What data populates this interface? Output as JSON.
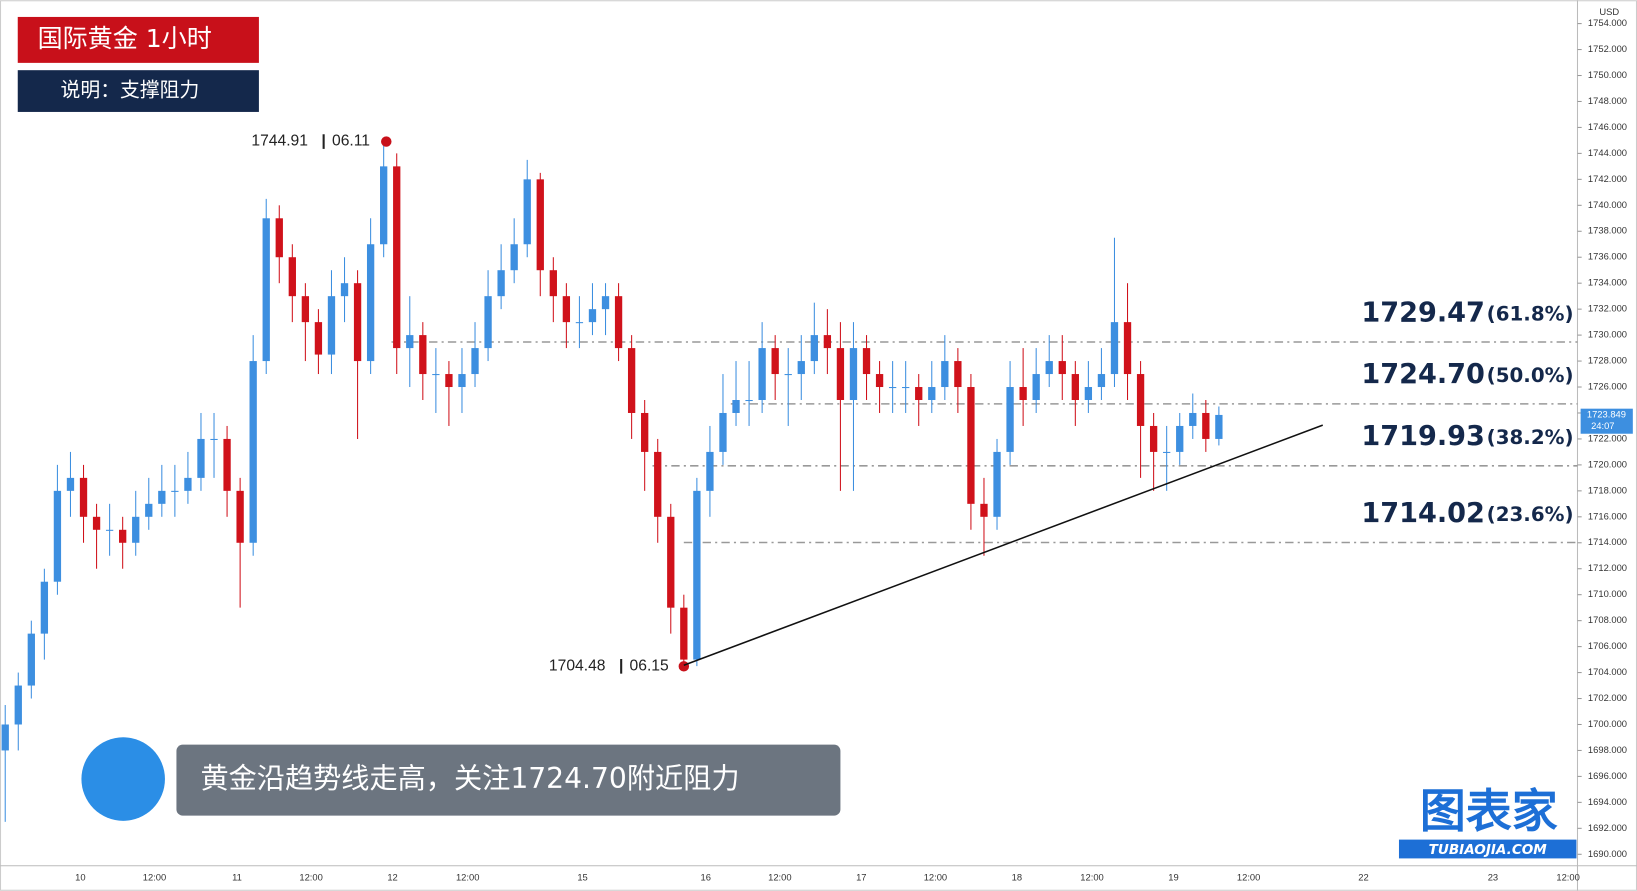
{
  "chart_data": {
    "type": "candlestick",
    "title": "国际黄金  1小时",
    "subtitle": "说明：支撑阻力",
    "caption": "黄金沿趋势线走高，关注1724.70附近阻力",
    "currency": "USD",
    "last_price": {
      "value": 1723.849,
      "label": "1723.849"
    },
    "countdown": "24:07",
    "logo": "图表家",
    "logo_url": "TUBIAOJIA.COM",
    "up_color": "#3d8fe0",
    "down_color": "#d0121b",
    "open": [
      1698,
      1700,
      1703,
      1707,
      1711,
      1718,
      1719,
      1716,
      1715,
      1715,
      1714,
      1716,
      1717,
      1718,
      1718,
      1719,
      1722,
      1722,
      1718,
      1714,
      1728,
      1739,
      1736,
      1733,
      1731,
      1728.5,
      1733,
      1734,
      1728,
      1737,
      1743,
      1729,
      1730,
      1727,
      1727,
      1726,
      1727,
      1729,
      1733,
      1735,
      1737,
      1742,
      1735,
      1733,
      1731,
      1731,
      1732,
      1733,
      1729,
      1724,
      1721,
      1716,
      1709,
      1705,
      1718,
      1721,
      1724,
      1725,
      1725,
      1729,
      1727,
      1727,
      1728,
      1730,
      1729,
      1725,
      1729,
      1727,
      1726,
      1726,
      1726,
      1725,
      1726,
      1728,
      1726,
      1717,
      1716,
      1721,
      1726,
      1725,
      1727,
      1728,
      1727,
      1725,
      1726,
      1727,
      1731,
      1727,
      1723,
      1721,
      1721,
      1723,
      1724,
      1722
    ],
    "high": [
      1701.5,
      1704,
      1708,
      1712,
      1720,
      1721,
      1720,
      1717,
      1717,
      1716,
      1718,
      1719,
      1720,
      1720,
      1721,
      1724,
      1724,
      1723,
      1719,
      1730,
      1740.5,
      1740,
      1737,
      1734,
      1732,
      1735,
      1736,
      1735,
      1739,
      1744.91,
      1744,
      1733,
      1731,
      1729,
      1728,
      1729,
      1731,
      1735,
      1737,
      1739,
      1743.5,
      1742.5,
      1736,
      1734,
      1733,
      1734,
      1734,
      1734,
      1730,
      1725,
      1722,
      1717,
      1710,
      1719,
      1723,
      1727,
      1728,
      1728,
      1731,
      1730,
      1729,
      1730,
      1732.5,
      1732,
      1731,
      1731,
      1730,
      1728,
      1728,
      1728,
      1727,
      1728,
      1730,
      1729,
      1727,
      1719,
      1722,
      1728,
      1729,
      1729,
      1730,
      1730,
      1728,
      1728,
      1729,
      1737.5,
      1734,
      1728,
      1724,
      1723,
      1724,
      1725.5,
      1725,
      1724.5
    ],
    "low": [
      1692.5,
      1698,
      1702,
      1705,
      1710,
      1716,
      1714,
      1712,
      1713,
      1712,
      1713,
      1715,
      1716,
      1716,
      1717,
      1718,
      1719,
      1716,
      1709,
      1713,
      1727,
      1734,
      1731,
      1728,
      1727,
      1727,
      1731,
      1722,
      1727,
      1736,
      1727,
      1726,
      1725,
      1724,
      1723,
      1724,
      1726,
      1728,
      1732,
      1734,
      1736,
      1733,
      1731,
      1729,
      1729,
      1730,
      1730,
      1728,
      1722,
      1718,
      1714,
      1707,
      1704.48,
      1704.5,
      1716,
      1720,
      1723,
      1723,
      1724,
      1725,
      1723,
      1725,
      1727,
      1727,
      1718,
      1718,
      1725,
      1724,
      1724,
      1724,
      1723,
      1724,
      1725,
      1724,
      1715,
      1713,
      1715,
      1720,
      1723,
      1724,
      1726,
      1725,
      1723,
      1724,
      1725,
      1726,
      1725,
      1719,
      1718,
      1718,
      1720,
      1722,
      1721,
      1721.5
    ],
    "close": [
      1700,
      1703,
      1707,
      1711,
      1718,
      1719,
      1716,
      1715,
      1715,
      1714,
      1716,
      1717,
      1718,
      1718,
      1719,
      1722,
      1722,
      1718,
      1714,
      1728,
      1739,
      1736,
      1733,
      1731,
      1728.5,
      1733,
      1734,
      1728,
      1737,
      1743,
      1729,
      1730,
      1727,
      1727,
      1726,
      1727,
      1729,
      1733,
      1735,
      1737,
      1742,
      1735,
      1733,
      1731,
      1731,
      1732,
      1733,
      1729,
      1724,
      1721,
      1716,
      1709,
      1705,
      1718,
      1721,
      1724,
      1725,
      1725,
      1729,
      1727,
      1727,
      1728,
      1730,
      1729,
      1725,
      1729,
      1727,
      1726,
      1726,
      1726,
      1725,
      1726,
      1728,
      1726,
      1717,
      1716,
      1721,
      1726,
      1725,
      1727,
      1728,
      1727,
      1725,
      1726,
      1727,
      1731,
      1727,
      1723,
      1721,
      1721,
      1723,
      1724,
      1722,
      1723.849
    ],
    "ylim": [
      1689.2,
      1755.8
    ],
    "yticks": [
      {
        "value": 1690,
        "label": "1690.000"
      },
      {
        "value": 1692,
        "label": "1692.000"
      },
      {
        "value": 1694,
        "label": "1694.000"
      },
      {
        "value": 1696,
        "label": "1696.000"
      },
      {
        "value": 1698,
        "label": "1698.000"
      },
      {
        "value": 1700,
        "label": "1700.000"
      },
      {
        "value": 1702,
        "label": "1702.000"
      },
      {
        "value": 1704,
        "label": "1704.000"
      },
      {
        "value": 1706,
        "label": "1706.000"
      },
      {
        "value": 1708,
        "label": "1708.000"
      },
      {
        "value": 1710,
        "label": "1710.000"
      },
      {
        "value": 1712,
        "label": "1712.000"
      },
      {
        "value": 1714,
        "label": "1714.000"
      },
      {
        "value": 1716,
        "label": "1716.000"
      },
      {
        "value": 1718,
        "label": "1718.000"
      },
      {
        "value": 1720,
        "label": "1720.000"
      },
      {
        "value": 1722,
        "label": "1722.000"
      },
      {
        "value": 1724,
        "label": "1724.000"
      },
      {
        "value": 1726,
        "label": "1726.000"
      },
      {
        "value": 1728,
        "label": "1728.000"
      },
      {
        "value": 1730,
        "label": "1730.000"
      },
      {
        "value": 1732,
        "label": "1732.000"
      },
      {
        "value": 1734,
        "label": "1734.000"
      },
      {
        "value": 1736,
        "label": "1736.000"
      },
      {
        "value": 1738,
        "label": "1738.000"
      },
      {
        "value": 1740,
        "label": "1740.000"
      },
      {
        "value": 1742,
        "label": "1742.000"
      },
      {
        "value": 1744,
        "label": "1744.000"
      },
      {
        "value": 1746,
        "label": "1746.000"
      },
      {
        "value": 1748,
        "label": "1748.000"
      },
      {
        "value": 1750,
        "label": "1750.000"
      },
      {
        "value": 1752,
        "label": "1752.000"
      },
      {
        "value": 1754,
        "label": "1754.000"
      }
    ],
    "x_labels": [
      "10",
      "12:00",
      "11",
      "12:00",
      "12",
      "12:00",
      "15",
      "16",
      "12:00",
      "17",
      "12:00",
      "18",
      "12:00",
      "19",
      "12:00",
      "22",
      "23",
      "12:00"
    ],
    "levels": [
      {
        "value": 1729.47,
        "label": "1729.47",
        "ratio": "(61.8%)"
      },
      {
        "value": 1724.7,
        "label": "1724.70",
        "ratio": "(50.0%)"
      },
      {
        "value": 1719.93,
        "label": "1719.93",
        "ratio": "(38.2%)"
      },
      {
        "value": 1714.02,
        "label": "1714.02",
        "ratio": "(23.6%)"
      }
    ],
    "annotations": [
      {
        "value": 1744.91,
        "label": "1744.91",
        "date": "06.11"
      },
      {
        "value": 1704.48,
        "label": "1704.48",
        "date": "06.15"
      }
    ]
  }
}
